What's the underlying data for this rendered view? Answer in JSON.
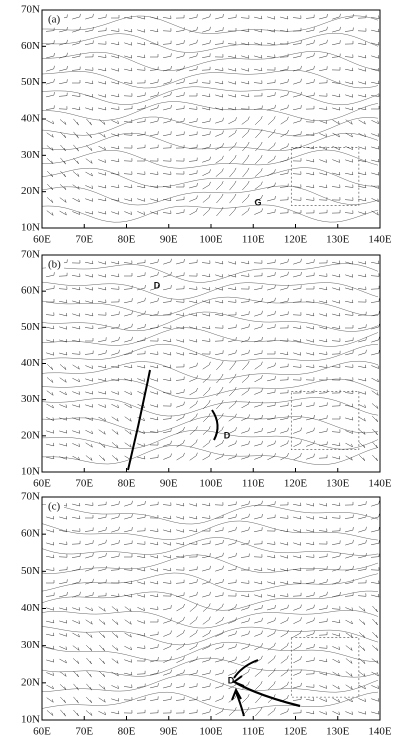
{
  "panels": [
    {
      "label": "(a)",
      "lat_labels": [
        "70N",
        "60N",
        "50N",
        "40N",
        "30N",
        "20N",
        "10N"
      ],
      "lon_labels": [
        "60E",
        "70E",
        "80E",
        "90E",
        "100E",
        "110E",
        "120E",
        "130E",
        "140E"
      ],
      "symbols": [
        "G"
      ]
    },
    {
      "label": "(b)",
      "lat_labels": [
        "70N",
        "60N",
        "50N",
        "40N",
        "30N",
        "20N",
        "10N"
      ],
      "lon_labels": [
        "60E",
        "70E",
        "80E",
        "90E",
        "100E",
        "110E",
        "120E",
        "130E",
        "140E"
      ],
      "symbols": [
        "D",
        "D"
      ]
    },
    {
      "label": "(c)",
      "lat_labels": [
        "70N",
        "60N",
        "50N",
        "40N",
        "30N",
        "20N",
        "10N"
      ],
      "lon_labels": [
        "60E",
        "70E",
        "80E",
        "90E",
        "100E",
        "110E",
        "120E",
        "130E",
        "140E"
      ],
      "symbols": [
        "D"
      ]
    }
  ]
}
